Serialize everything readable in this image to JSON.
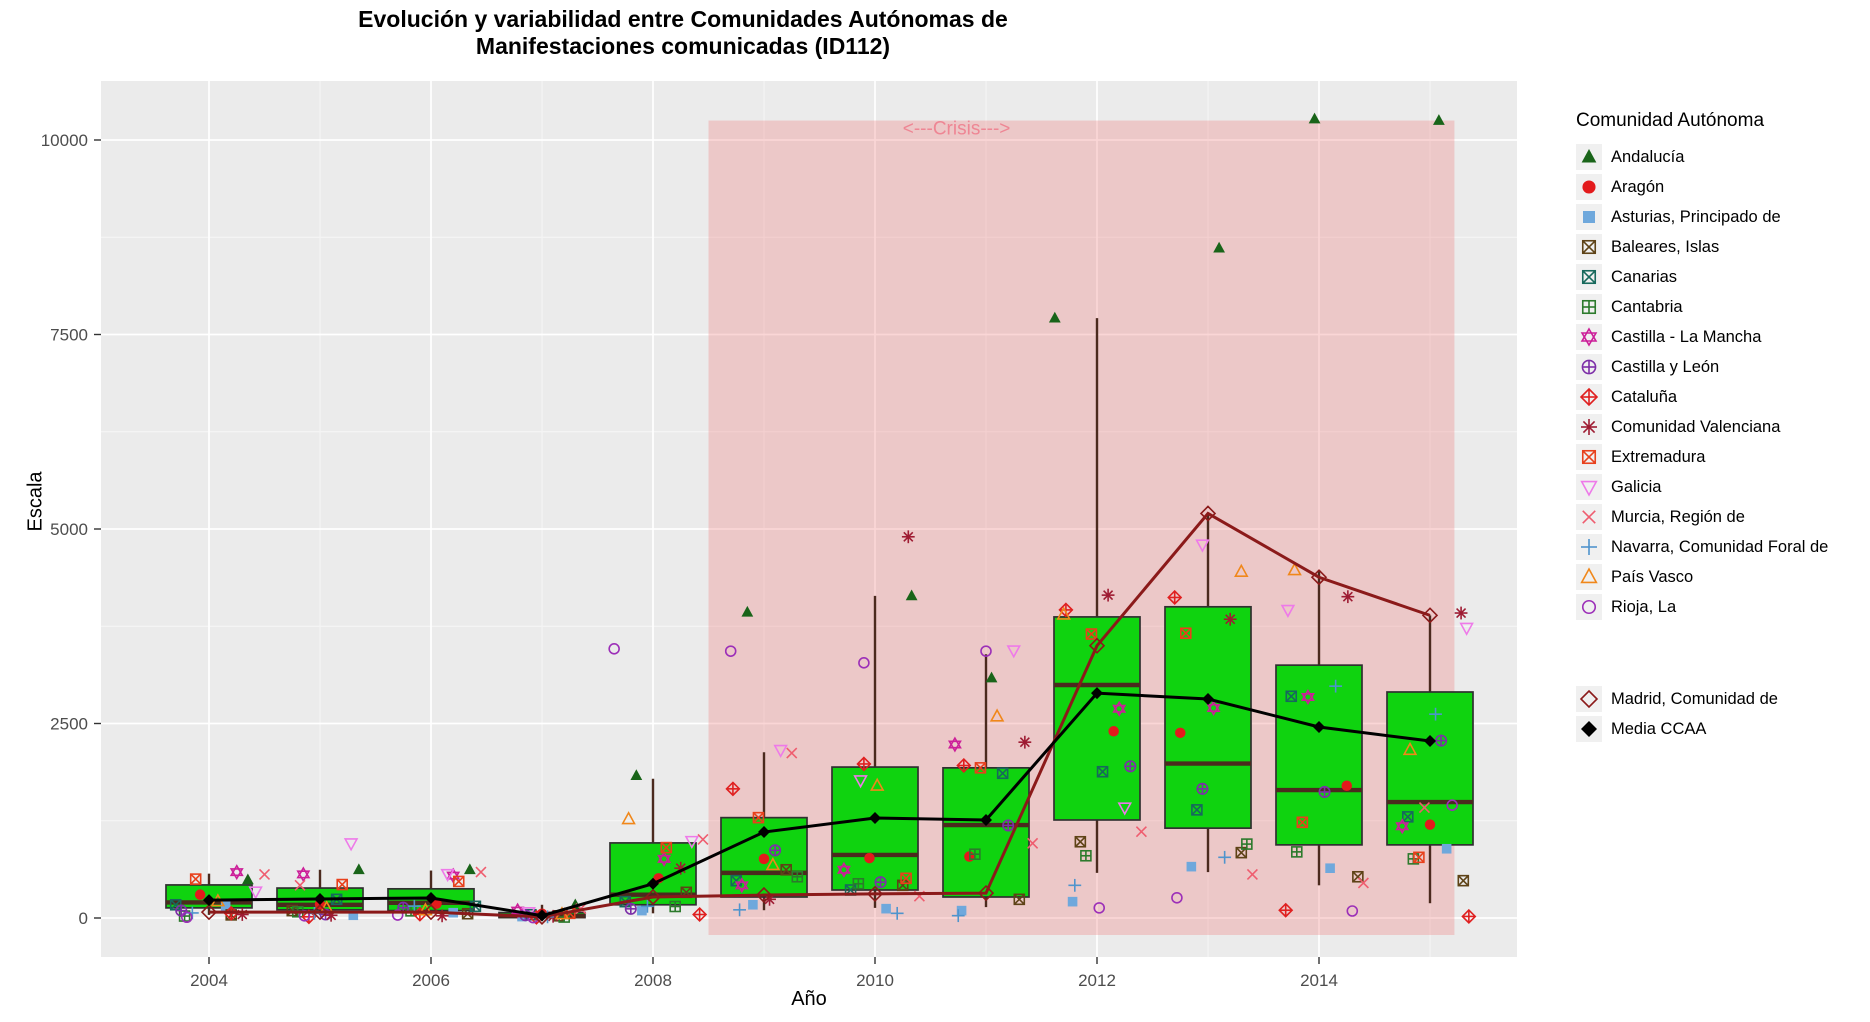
{
  "title": {
    "line1": "Evolución y variabilidad entre Comunidades Autónomas de",
    "line2": "Manifestaciones comunicadas (ID112)"
  },
  "axes": {
    "x_label": "Año",
    "y_label": "Escala",
    "x_ticks": [
      2004,
      2006,
      2008,
      2010,
      2012,
      2014
    ],
    "y_ticks": [
      0,
      2500,
      5000,
      7500,
      10000
    ]
  },
  "legend": {
    "title": "Comunidad Autónoma",
    "extra_items": [
      {
        "label": "Madrid, Comunidad de",
        "shape": "diamond-open",
        "color": "#8b1a1a"
      },
      {
        "label": "Media CCAA",
        "shape": "diamond-filled",
        "color": "#000000"
      }
    ]
  },
  "chart_data": {
    "type": "boxplot+jitter+lines",
    "title": "Evolución y variabilidad entre Comunidades Autónomas de Manifestaciones comunicadas (ID112)",
    "xlabel": "Año",
    "ylabel": "Escala",
    "xlim": [
      2003.4,
      2015.9
    ],
    "ylim": [
      -500,
      10760
    ],
    "grid": true,
    "legend_position": "right",
    "years": [
      2004,
      2005,
      2006,
      2007,
      2008,
      2009,
      2010,
      2011,
      2012,
      2013,
      2014,
      2015
    ],
    "boxes": [
      {
        "year": 2004,
        "min": 40,
        "q1": 130,
        "med": 200,
        "q3": 425,
        "max": 570
      },
      {
        "year": 2005,
        "min": 40,
        "q1": 105,
        "med": 170,
        "q3": 385,
        "max": 620
      },
      {
        "year": 2006,
        "min": 40,
        "q1": 95,
        "med": 195,
        "q3": 375,
        "max": 610
      },
      {
        "year": 2007,
        "min": 0,
        "q1": 5,
        "med": 25,
        "q3": 70,
        "max": 170
      },
      {
        "year": 2008,
        "min": 60,
        "q1": 170,
        "med": 300,
        "q3": 965,
        "max": 1790
      },
      {
        "year": 2009,
        "min": 100,
        "q1": 270,
        "med": 580,
        "q3": 1290,
        "max": 2130
      },
      {
        "year": 2010,
        "min": 130,
        "q1": 360,
        "med": 810,
        "q3": 1940,
        "max": 4140
      },
      {
        "year": 2011,
        "min": 140,
        "q1": 270,
        "med": 1195,
        "q3": 1930,
        "max": 3390
      },
      {
        "year": 2012,
        "min": 580,
        "q1": 1260,
        "med": 2995,
        "q3": 3870,
        "max": 7710
      },
      {
        "year": 2013,
        "min": 590,
        "q1": 1155,
        "med": 1985,
        "q3": 4000,
        "max": 5200
      },
      {
        "year": 2014,
        "min": 420,
        "q1": 940,
        "med": 1645,
        "q3": 3250,
        "max": 4470
      },
      {
        "year": 2015,
        "min": 190,
        "q1": 940,
        "med": 1490,
        "q3": 2905,
        "max": 3890
      }
    ],
    "series": [
      {
        "name": "Madrid, Comunidad de",
        "color": "#8b1a1a",
        "marker": "diamond-open",
        "values": [
          75,
          75,
          75,
          15,
          270,
          295,
          310,
          320,
          3500,
          5200,
          4380,
          3890
        ]
      },
      {
        "name": "Media CCAA",
        "color": "#000000",
        "marker": "diamond-filled",
        "values": [
          230,
          245,
          257,
          30,
          440,
          1105,
          1285,
          1260,
          2890,
          2815,
          2455,
          2275
        ]
      }
    ],
    "communities": [
      {
        "name": "Andalucía",
        "shape": "triangle-filled",
        "color": "#196419"
      },
      {
        "name": "Aragón",
        "shape": "circle-filled",
        "color": "#e31a1c"
      },
      {
        "name": "Asturias, Principado de",
        "shape": "square-filled",
        "color": "#6fa8dc"
      },
      {
        "name": "Baleares, Islas",
        "shape": "square-x",
        "color": "#5e4317"
      },
      {
        "name": "Canarias",
        "shape": "square-x",
        "color": "#17695c"
      },
      {
        "name": "Cantabria",
        "shape": "square-plus",
        "color": "#2c7a2c"
      },
      {
        "name": "Castilla - La Mancha",
        "shape": "hexagram",
        "color": "#cc1f99"
      },
      {
        "name": "Castilla y León",
        "shape": "circle-plus",
        "color": "#7d2fa8"
      },
      {
        "name": "Cataluña",
        "shape": "diamond-plus",
        "color": "#e02020"
      },
      {
        "name": "Comunidad Valenciana",
        "shape": "asterisk",
        "color": "#9e1b32"
      },
      {
        "name": "Extremadura",
        "shape": "square-x",
        "color": "#e8401c"
      },
      {
        "name": "Galicia",
        "shape": "triangle-down",
        "color": "#ee7ae9"
      },
      {
        "name": "Murcia, Región de",
        "shape": "x",
        "color": "#ef5d6f"
      },
      {
        "name": "Navarra, Comunidad Foral de",
        "shape": "plus",
        "color": "#4f94cd"
      },
      {
        "name": "País Vasco",
        "shape": "triangle-up",
        "color": "#f0871a"
      },
      {
        "name": "Rioja, La",
        "shape": "circle-open",
        "color": "#9c2fb8"
      }
    ],
    "crisis": {
      "label": "<---Crisis--->",
      "x_start": 2008.5,
      "x_end": 2015.22,
      "y_top": 10250,
      "fill": "rgba(240,128,128,0.32)",
      "label_color": "#ee8694"
    },
    "points": [
      [
        2004.35,
        490,
        0
      ],
      [
        2003.92,
        300,
        1
      ],
      [
        2004.15,
        150,
        2
      ],
      [
        2004.2,
        40,
        3
      ],
      [
        2003.7,
        170,
        4
      ],
      [
        2003.78,
        25,
        5
      ],
      [
        2004.25,
        590,
        6
      ],
      [
        2003.75,
        95,
        7
      ],
      [
        2004.2,
        60,
        8
      ],
      [
        2004.3,
        45,
        9
      ],
      [
        2003.88,
        500,
        10
      ],
      [
        2004.42,
        340,
        11
      ],
      [
        2004.5,
        560,
        12
      ],
      [
        2003.85,
        65,
        13
      ],
      [
        2004.08,
        215,
        14
      ],
      [
        2003.8,
        10,
        15
      ],
      [
        2005.35,
        620,
        0
      ],
      [
        2005.0,
        175,
        1
      ],
      [
        2005.3,
        35,
        2
      ],
      [
        2004.75,
        95,
        3
      ],
      [
        2005.15,
        240,
        4
      ],
      [
        2004.8,
        80,
        5
      ],
      [
        2004.85,
        560,
        6
      ],
      [
        2005.05,
        45,
        7
      ],
      [
        2004.9,
        15,
        8
      ],
      [
        2005.1,
        35,
        9
      ],
      [
        2005.2,
        430,
        10
      ],
      [
        2005.28,
        960,
        11
      ],
      [
        2004.82,
        420,
        12
      ],
      [
        2004.95,
        60,
        13
      ],
      [
        2005.06,
        125,
        14
      ],
      [
        2004.86,
        28,
        15
      ],
      [
        2006.35,
        620,
        0
      ],
      [
        2006.05,
        185,
        1
      ],
      [
        2006.2,
        68,
        2
      ],
      [
        2006.33,
        55,
        3
      ],
      [
        2006.4,
        150,
        4
      ],
      [
        2005.82,
        92,
        5
      ],
      [
        2006.2,
        545,
        6
      ],
      [
        2005.75,
        132,
        7
      ],
      [
        2005.9,
        48,
        8
      ],
      [
        2006.1,
        28,
        9
      ],
      [
        2006.25,
        470,
        10
      ],
      [
        2006.15,
        565,
        11
      ],
      [
        2006.45,
        590,
        12
      ],
      [
        2005.85,
        152,
        13
      ],
      [
        2005.95,
        98,
        14
      ],
      [
        2005.7,
        38,
        15
      ],
      [
        2007.3,
        168,
        0
      ],
      [
        2007.0,
        55,
        1
      ],
      [
        2006.82,
        18,
        2
      ],
      [
        2007.15,
        28,
        3
      ],
      [
        2006.9,
        42,
        4
      ],
      [
        2007.2,
        12,
        5
      ],
      [
        2006.78,
        95,
        6
      ],
      [
        2006.85,
        35,
        7
      ],
      [
        2006.95,
        8,
        8
      ],
      [
        2007.1,
        22,
        9
      ],
      [
        2007.25,
        60,
        10
      ],
      [
        2006.88,
        75,
        11
      ],
      [
        2007.35,
        120,
        12
      ],
      [
        2007.05,
        15,
        13
      ],
      [
        2007.18,
        48,
        14
      ],
      [
        2006.92,
        5,
        15
      ],
      [
        2007.85,
        1830,
        0
      ],
      [
        2008.05,
        510,
        1
      ],
      [
        2007.9,
        95,
        2
      ],
      [
        2008.3,
        330,
        3
      ],
      [
        2007.75,
        210,
        4
      ],
      [
        2008.2,
        148,
        5
      ],
      [
        2008.1,
        760,
        6
      ],
      [
        2007.8,
        118,
        7
      ],
      [
        2008.42,
        45,
        8
      ],
      [
        2008.25,
        640,
        9
      ],
      [
        2008.12,
        905,
        10
      ],
      [
        2008.35,
        990,
        11
      ],
      [
        2008.45,
        1010,
        12
      ],
      [
        2007.95,
        150,
        13
      ],
      [
        2007.78,
        1270,
        14
      ],
      [
        2007.65,
        3460,
        15
      ],
      [
        2008.85,
        3930,
        0
      ],
      [
        2009.0,
        760,
        1
      ],
      [
        2008.9,
        170,
        2
      ],
      [
        2009.2,
        620,
        3
      ],
      [
        2008.75,
        480,
        4
      ],
      [
        2009.3,
        530,
        5
      ],
      [
        2008.8,
        420,
        6
      ],
      [
        2009.1,
        870,
        7
      ],
      [
        2008.72,
        1660,
        8
      ],
      [
        2009.05,
        240,
        9
      ],
      [
        2008.95,
        1290,
        10
      ],
      [
        2009.15,
        2160,
        11
      ],
      [
        2009.25,
        2120,
        12
      ],
      [
        2008.78,
        105,
        13
      ],
      [
        2009.08,
        680,
        14
      ],
      [
        2008.7,
        3430,
        15
      ],
      [
        2010.33,
        4140,
        0
      ],
      [
        2009.95,
        770,
        1
      ],
      [
        2010.1,
        120,
        2
      ],
      [
        2010.25,
        420,
        3
      ],
      [
        2009.78,
        360,
        4
      ],
      [
        2009.85,
        440,
        5
      ],
      [
        2009.72,
        620,
        6
      ],
      [
        2010.05,
        460,
        7
      ],
      [
        2009.9,
        1980,
        8
      ],
      [
        2010.3,
        4900,
        9
      ],
      [
        2010.28,
        510,
        10
      ],
      [
        2009.87,
        1770,
        11
      ],
      [
        2010.4,
        280,
        12
      ],
      [
        2010.2,
        60,
        13
      ],
      [
        2010.02,
        1700,
        14
      ],
      [
        2009.9,
        3280,
        15
      ],
      [
        2011.05,
        3085,
        0
      ],
      [
        2010.85,
        790,
        1
      ],
      [
        2010.78,
        95,
        2
      ],
      [
        2011.3,
        240,
        3
      ],
      [
        2011.15,
        1860,
        4
      ],
      [
        2010.9,
        820,
        5
      ],
      [
        2010.72,
        2230,
        6
      ],
      [
        2011.2,
        1190,
        7
      ],
      [
        2010.8,
        1960,
        8
      ],
      [
        2011.35,
        2260,
        9
      ],
      [
        2010.95,
        1930,
        10
      ],
      [
        2011.25,
        3440,
        11
      ],
      [
        2011.42,
        960,
        12
      ],
      [
        2010.75,
        30,
        13
      ],
      [
        2011.1,
        2590,
        14
      ],
      [
        2011.0,
        3430,
        15
      ],
      [
        2011.62,
        7710,
        0
      ],
      [
        2012.15,
        2400,
        1
      ],
      [
        2011.78,
        210,
        2
      ],
      [
        2011.85,
        980,
        3
      ],
      [
        2012.05,
        1880,
        4
      ],
      [
        2011.9,
        800,
        5
      ],
      [
        2012.2,
        2690,
        6
      ],
      [
        2012.3,
        1950,
        7
      ],
      [
        2011.72,
        3960,
        8
      ],
      [
        2012.1,
        4150,
        9
      ],
      [
        2011.95,
        3650,
        10
      ],
      [
        2012.25,
        1420,
        11
      ],
      [
        2012.4,
        1110,
        12
      ],
      [
        2011.8,
        420,
        13
      ],
      [
        2011.7,
        3900,
        14
      ],
      [
        2012.02,
        130,
        15
      ],
      [
        2013.1,
        8610,
        0
      ],
      [
        2012.75,
        2380,
        1
      ],
      [
        2012.85,
        660,
        2
      ],
      [
        2013.3,
        840,
        3
      ],
      [
        2012.9,
        1390,
        4
      ],
      [
        2013.35,
        950,
        5
      ],
      [
        2013.05,
        2700,
        6
      ],
      [
        2012.95,
        1660,
        7
      ],
      [
        2012.7,
        4120,
        8
      ],
      [
        2013.2,
        3840,
        9
      ],
      [
        2012.8,
        3660,
        10
      ],
      [
        2012.95,
        4800,
        11
      ],
      [
        2013.4,
        560,
        12
      ],
      [
        2013.15,
        780,
        13
      ],
      [
        2013.3,
        4450,
        14
      ],
      [
        2012.72,
        260,
        15
      ],
      [
        2013.96,
        10270,
        0
      ],
      [
        2014.25,
        1700,
        1
      ],
      [
        2014.1,
        640,
        2
      ],
      [
        2014.35,
        530,
        3
      ],
      [
        2013.75,
        2850,
        4
      ],
      [
        2013.8,
        850,
        5
      ],
      [
        2013.9,
        2840,
        6
      ],
      [
        2014.05,
        1620,
        7
      ],
      [
        2013.7,
        100,
        8
      ],
      [
        2014.26,
        4130,
        9
      ],
      [
        2013.85,
        1230,
        10
      ],
      [
        2013.72,
        3960,
        11
      ],
      [
        2014.4,
        450,
        12
      ],
      [
        2014.15,
        2980,
        13
      ],
      [
        2013.78,
        4470,
        14
      ],
      [
        2014.3,
        90,
        15
      ],
      [
        2015.08,
        10250,
        0
      ],
      [
        2015.0,
        1200,
        1
      ],
      [
        2015.15,
        890,
        2
      ],
      [
        2015.3,
        480,
        3
      ],
      [
        2014.8,
        1300,
        4
      ],
      [
        2014.85,
        760,
        5
      ],
      [
        2014.75,
        1180,
        6
      ],
      [
        2015.1,
        2280,
        7
      ],
      [
        2015.35,
        20,
        8
      ],
      [
        2015.28,
        3920,
        9
      ],
      [
        2014.9,
        780,
        10
      ],
      [
        2015.33,
        3730,
        11
      ],
      [
        2014.95,
        1420,
        12
      ],
      [
        2015.05,
        2620,
        13
      ],
      [
        2014.82,
        2160,
        14
      ],
      [
        2015.2,
        1450,
        15
      ]
    ],
    "style": {
      "panel_bg": "#ebebeb",
      "grid_major": "#ffffff",
      "box_fill": "#0fd30f",
      "box_stroke": "#303030",
      "median_stroke": "#4b2a1e",
      "tick_label_color": "#4d4d4d"
    }
  }
}
